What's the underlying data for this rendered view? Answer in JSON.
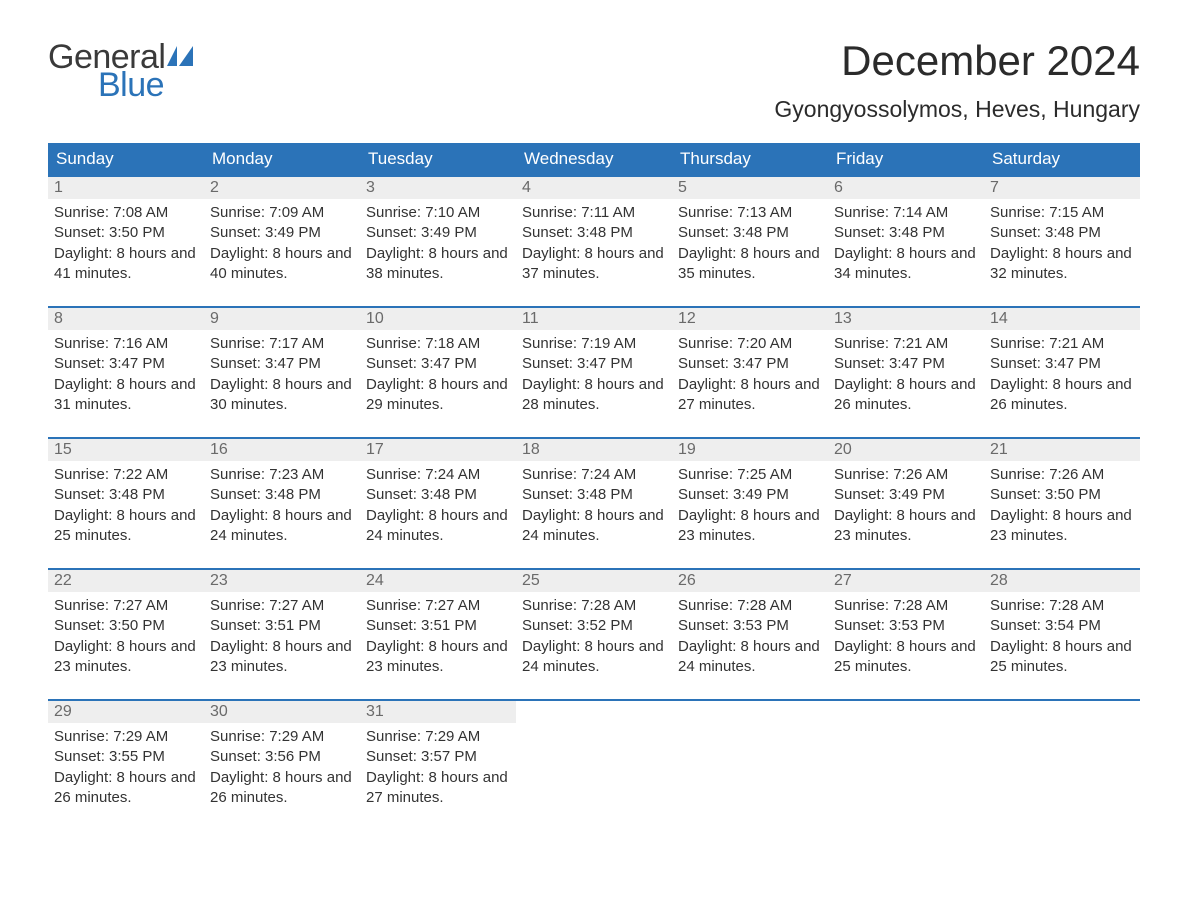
{
  "logo": {
    "word1": "General",
    "word2": "Blue",
    "text_color": "#3a3a3a",
    "accent_color": "#2b73b8"
  },
  "title": "December 2024",
  "location": "Gyongyossolymos, Heves, Hungary",
  "colors": {
    "header_bg": "#2b73b8",
    "header_text": "#ffffff",
    "daynum_bg": "#eeeeee",
    "daynum_text": "#6a6a6a",
    "border": "#2b73b8",
    "body_text": "#333333",
    "page_bg": "#ffffff"
  },
  "typography": {
    "title_fontsize": 42,
    "location_fontsize": 23,
    "weekday_fontsize": 17,
    "daynum_fontsize": 16,
    "body_fontsize": 15,
    "font_family": "Arial"
  },
  "layout": {
    "columns": 7,
    "rows": 5,
    "col_width_pct": 14.28
  },
  "labels": {
    "sunrise": "Sunrise:",
    "sunset": "Sunset:",
    "daylight": "Daylight:"
  },
  "weekdays": [
    "Sunday",
    "Monday",
    "Tuesday",
    "Wednesday",
    "Thursday",
    "Friday",
    "Saturday"
  ],
  "days": [
    {
      "n": 1,
      "sunrise": "7:08 AM",
      "sunset": "3:50 PM",
      "dl": "8 hours and 41 minutes."
    },
    {
      "n": 2,
      "sunrise": "7:09 AM",
      "sunset": "3:49 PM",
      "dl": "8 hours and 40 minutes."
    },
    {
      "n": 3,
      "sunrise": "7:10 AM",
      "sunset": "3:49 PM",
      "dl": "8 hours and 38 minutes."
    },
    {
      "n": 4,
      "sunrise": "7:11 AM",
      "sunset": "3:48 PM",
      "dl": "8 hours and 37 minutes."
    },
    {
      "n": 5,
      "sunrise": "7:13 AM",
      "sunset": "3:48 PM",
      "dl": "8 hours and 35 minutes."
    },
    {
      "n": 6,
      "sunrise": "7:14 AM",
      "sunset": "3:48 PM",
      "dl": "8 hours and 34 minutes."
    },
    {
      "n": 7,
      "sunrise": "7:15 AM",
      "sunset": "3:48 PM",
      "dl": "8 hours and 32 minutes."
    },
    {
      "n": 8,
      "sunrise": "7:16 AM",
      "sunset": "3:47 PM",
      "dl": "8 hours and 31 minutes."
    },
    {
      "n": 9,
      "sunrise": "7:17 AM",
      "sunset": "3:47 PM",
      "dl": "8 hours and 30 minutes."
    },
    {
      "n": 10,
      "sunrise": "7:18 AM",
      "sunset": "3:47 PM",
      "dl": "8 hours and 29 minutes."
    },
    {
      "n": 11,
      "sunrise": "7:19 AM",
      "sunset": "3:47 PM",
      "dl": "8 hours and 28 minutes."
    },
    {
      "n": 12,
      "sunrise": "7:20 AM",
      "sunset": "3:47 PM",
      "dl": "8 hours and 27 minutes."
    },
    {
      "n": 13,
      "sunrise": "7:21 AM",
      "sunset": "3:47 PM",
      "dl": "8 hours and 26 minutes."
    },
    {
      "n": 14,
      "sunrise": "7:21 AM",
      "sunset": "3:47 PM",
      "dl": "8 hours and 26 minutes."
    },
    {
      "n": 15,
      "sunrise": "7:22 AM",
      "sunset": "3:48 PM",
      "dl": "8 hours and 25 minutes."
    },
    {
      "n": 16,
      "sunrise": "7:23 AM",
      "sunset": "3:48 PM",
      "dl": "8 hours and 24 minutes."
    },
    {
      "n": 17,
      "sunrise": "7:24 AM",
      "sunset": "3:48 PM",
      "dl": "8 hours and 24 minutes."
    },
    {
      "n": 18,
      "sunrise": "7:24 AM",
      "sunset": "3:48 PM",
      "dl": "8 hours and 24 minutes."
    },
    {
      "n": 19,
      "sunrise": "7:25 AM",
      "sunset": "3:49 PM",
      "dl": "8 hours and 23 minutes."
    },
    {
      "n": 20,
      "sunrise": "7:26 AM",
      "sunset": "3:49 PM",
      "dl": "8 hours and 23 minutes."
    },
    {
      "n": 21,
      "sunrise": "7:26 AM",
      "sunset": "3:50 PM",
      "dl": "8 hours and 23 minutes."
    },
    {
      "n": 22,
      "sunrise": "7:27 AM",
      "sunset": "3:50 PM",
      "dl": "8 hours and 23 minutes."
    },
    {
      "n": 23,
      "sunrise": "7:27 AM",
      "sunset": "3:51 PM",
      "dl": "8 hours and 23 minutes."
    },
    {
      "n": 24,
      "sunrise": "7:27 AM",
      "sunset": "3:51 PM",
      "dl": "8 hours and 23 minutes."
    },
    {
      "n": 25,
      "sunrise": "7:28 AM",
      "sunset": "3:52 PM",
      "dl": "8 hours and 24 minutes."
    },
    {
      "n": 26,
      "sunrise": "7:28 AM",
      "sunset": "3:53 PM",
      "dl": "8 hours and 24 minutes."
    },
    {
      "n": 27,
      "sunrise": "7:28 AM",
      "sunset": "3:53 PM",
      "dl": "8 hours and 25 minutes."
    },
    {
      "n": 28,
      "sunrise": "7:28 AM",
      "sunset": "3:54 PM",
      "dl": "8 hours and 25 minutes."
    },
    {
      "n": 29,
      "sunrise": "7:29 AM",
      "sunset": "3:55 PM",
      "dl": "8 hours and 26 minutes."
    },
    {
      "n": 30,
      "sunrise": "7:29 AM",
      "sunset": "3:56 PM",
      "dl": "8 hours and 26 minutes."
    },
    {
      "n": 31,
      "sunrise": "7:29 AM",
      "sunset": "3:57 PM",
      "dl": "8 hours and 27 minutes."
    }
  ]
}
